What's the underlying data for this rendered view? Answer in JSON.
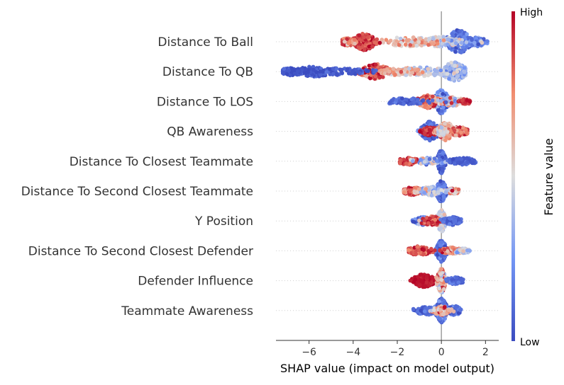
{
  "chart_data": {
    "type": "scatter",
    "subtype": "shap-beeswarm",
    "title": "",
    "xlabel": "SHAP value (impact on model output)",
    "ylabel": "",
    "xlim": [
      -7.5,
      2.6
    ],
    "xticks": [
      -6,
      -4,
      -2,
      0,
      2
    ],
    "xtick_labels": [
      "−6",
      "−4",
      "−2",
      "0",
      "2"
    ],
    "grid": false,
    "colorbar": {
      "title": "Feature value",
      "high_label": "High",
      "low_label": "Low",
      "colormap": "coolwarm",
      "low_color": "#3b4cc0",
      "high_color": "#b40426"
    },
    "features": [
      {
        "name": "Distance To Ball",
        "x_range": [
          -4.5,
          2.1
        ],
        "groups": [
          {
            "x": 0.8,
            "sd": 0.35,
            "h": 1.0,
            "v": 0.12,
            "vj": 0.08
          },
          {
            "x": 1.6,
            "sd": 0.3,
            "h": 0.3,
            "v": 0.18,
            "vj": 0.08
          },
          {
            "x": 0.0,
            "sd": 0.6,
            "h": 0.35,
            "v": 0.45,
            "vj": 0.1
          },
          {
            "x": -1.5,
            "sd": 0.9,
            "h": 0.3,
            "v": 0.6,
            "vj": 0.1
          },
          {
            "x": -3.5,
            "sd": 0.3,
            "h": 0.7,
            "v": 0.88,
            "vj": 0.08
          },
          {
            "x": -4.2,
            "sd": 0.25,
            "h": 0.25,
            "v": 0.75,
            "vj": 0.1
          }
        ]
      },
      {
        "name": "Distance To QB",
        "x_range": [
          -7.2,
          1.1
        ],
        "groups": [
          {
            "x": 0.6,
            "sd": 0.35,
            "h": 0.8,
            "v": 0.35,
            "vj": 0.1
          },
          {
            "x": -0.8,
            "sd": 0.8,
            "h": 0.3,
            "v": 0.45,
            "vj": 0.1
          },
          {
            "x": -3.0,
            "sd": 0.4,
            "h": 0.6,
            "v": 0.85,
            "vj": 0.1
          },
          {
            "x": -1.8,
            "sd": 0.5,
            "h": 0.25,
            "v": 0.65,
            "vj": 0.1
          },
          {
            "x": -5.8,
            "sd": 0.6,
            "h": 0.35,
            "v": 0.04,
            "vj": 0.04
          },
          {
            "x": -4.5,
            "sd": 0.8,
            "h": 0.2,
            "v": 0.06,
            "vj": 0.04
          },
          {
            "x": -6.8,
            "sd": 0.3,
            "h": 0.25,
            "v": 0.04,
            "vj": 0.03
          }
        ]
      },
      {
        "name": "Distance To LOS",
        "x_range": [
          -2.5,
          1.3
        ],
        "groups": [
          {
            "x": 0.0,
            "sd": 0.2,
            "h": 1.0,
            "v": 0.2,
            "vj": 0.12
          },
          {
            "x": -0.6,
            "sd": 0.3,
            "h": 0.5,
            "v": 0.8,
            "vj": 0.12
          },
          {
            "x": 0.5,
            "sd": 0.3,
            "h": 0.3,
            "v": 0.55,
            "vj": 0.2
          },
          {
            "x": -1.6,
            "sd": 0.5,
            "h": 0.2,
            "v": 0.08,
            "vj": 0.05
          },
          {
            "x": 1.1,
            "sd": 0.15,
            "h": 0.1,
            "v": 0.92,
            "vj": 0.05
          }
        ]
      },
      {
        "name": "QB Awareness",
        "x_range": [
          -1.3,
          1.2
        ],
        "groups": [
          {
            "x": -0.5,
            "sd": 0.25,
            "h": 0.8,
            "v": 0.1,
            "vj": 0.1
          },
          {
            "x": -0.5,
            "sd": 0.2,
            "h": 0.3,
            "v": 0.92,
            "vj": 0.05
          },
          {
            "x": 0.2,
            "sd": 0.2,
            "h": 0.8,
            "v": 0.68,
            "vj": 0.1
          },
          {
            "x": 0.8,
            "sd": 0.25,
            "h": 0.3,
            "v": 0.8,
            "vj": 0.1
          },
          {
            "x": 0.0,
            "sd": 0.1,
            "h": 0.3,
            "v": 0.5,
            "vj": 0.1
          }
        ]
      },
      {
        "name": "Distance To Closest Teammate",
        "x_range": [
          -1.9,
          1.6
        ],
        "groups": [
          {
            "x": 0.0,
            "sd": 0.08,
            "h": 1.0,
            "v": 0.1,
            "vj": 0.08
          },
          {
            "x": -1.5,
            "sd": 0.25,
            "h": 0.2,
            "v": 0.9,
            "vj": 0.06
          },
          {
            "x": -0.6,
            "sd": 0.35,
            "h": 0.2,
            "v": 0.35,
            "vj": 0.2
          },
          {
            "x": 1.0,
            "sd": 0.35,
            "h": 0.2,
            "v": 0.08,
            "vj": 0.05
          }
        ]
      },
      {
        "name": "Distance To Second Closest Teammate",
        "x_range": [
          -1.7,
          0.8
        ],
        "groups": [
          {
            "x": 0.0,
            "sd": 0.12,
            "h": 0.9,
            "v": 0.12,
            "vj": 0.08
          },
          {
            "x": -1.3,
            "sd": 0.25,
            "h": 0.25,
            "v": 0.82,
            "vj": 0.1
          },
          {
            "x": -0.5,
            "sd": 0.3,
            "h": 0.3,
            "v": 0.4,
            "vj": 0.15
          },
          {
            "x": 0.5,
            "sd": 0.15,
            "h": 0.15,
            "v": 0.6,
            "vj": 0.2
          }
        ]
      },
      {
        "name": "Y Position",
        "x_range": [
          -1.4,
          0.9
        ],
        "groups": [
          {
            "x": 0.0,
            "sd": 0.1,
            "h": 0.9,
            "v": 0.45,
            "vj": 0.1
          },
          {
            "x": -0.8,
            "sd": 0.3,
            "h": 0.25,
            "v": 0.2,
            "vj": 0.2
          },
          {
            "x": -0.4,
            "sd": 0.3,
            "h": 0.3,
            "v": 0.85,
            "vj": 0.1
          },
          {
            "x": 0.5,
            "sd": 0.2,
            "h": 0.25,
            "v": 0.1,
            "vj": 0.05
          }
        ]
      },
      {
        "name": "Distance To Second Closest Defender",
        "x_range": [
          -1.5,
          1.3
        ],
        "groups": [
          {
            "x": 0.0,
            "sd": 0.12,
            "h": 0.9,
            "v": 0.12,
            "vj": 0.08
          },
          {
            "x": -1.0,
            "sd": 0.3,
            "h": 0.3,
            "v": 0.88,
            "vj": 0.08
          },
          {
            "x": 0.5,
            "sd": 0.25,
            "h": 0.2,
            "v": 0.75,
            "vj": 0.1
          },
          {
            "x": 1.0,
            "sd": 0.15,
            "h": 0.1,
            "v": 0.4,
            "vj": 0.1
          }
        ]
      },
      {
        "name": "Defender Influence",
        "x_range": [
          -1.5,
          1.0
        ],
        "groups": [
          {
            "x": -0.8,
            "sd": 0.3,
            "h": 0.5,
            "v": 0.97,
            "vj": 0.02
          },
          {
            "x": 0.0,
            "sd": 0.1,
            "h": 1.0,
            "v": 0.65,
            "vj": 0.15
          },
          {
            "x": 0.6,
            "sd": 0.2,
            "h": 0.2,
            "v": 0.1,
            "vj": 0.06
          }
        ]
      },
      {
        "name": "Teammate Awareness",
        "x_range": [
          -1.3,
          0.9
        ],
        "groups": [
          {
            "x": 0.0,
            "sd": 0.15,
            "h": 1.0,
            "v": 0.15,
            "vj": 0.1
          },
          {
            "x": -0.7,
            "sd": 0.25,
            "h": 0.3,
            "v": 0.1,
            "vj": 0.06
          },
          {
            "x": 0.6,
            "sd": 0.2,
            "h": 0.3,
            "v": 0.1,
            "vj": 0.06
          },
          {
            "x": 0.0,
            "sd": 0.2,
            "h": 0.3,
            "v": 0.7,
            "vj": 0.15
          }
        ]
      }
    ]
  }
}
